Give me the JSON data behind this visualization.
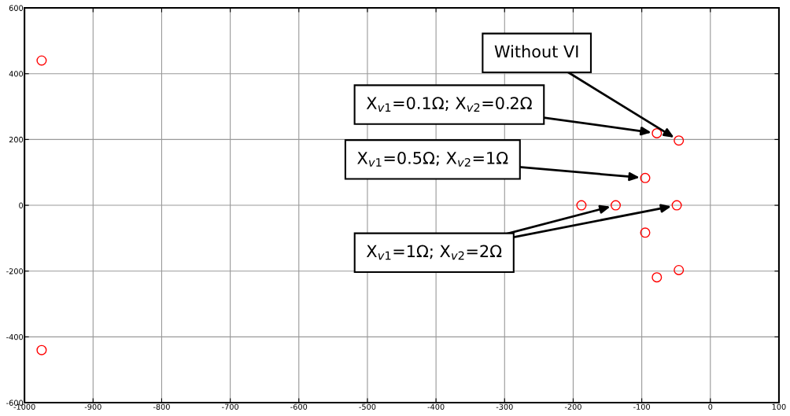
{
  "chart_data": {
    "type": "scatter",
    "marker": "circle",
    "grid": true,
    "xlim": [
      -1000,
      100
    ],
    "xticks": [
      -1000,
      -900,
      -800,
      -700,
      -600,
      -500,
      -400,
      -300,
      -200,
      -100,
      0,
      100
    ],
    "ylim": [
      -600,
      600
    ],
    "yticks": [
      -600,
      -400,
      -200,
      0,
      200,
      400,
      600
    ],
    "series": [
      {
        "color": "#ff0000",
        "x": [
          -975,
          -975,
          -188,
          -138,
          -49,
          -95,
          -95,
          -78,
          -78,
          -46,
          -46
        ],
        "values": [
          440,
          -440,
          0,
          0,
          0,
          83,
          -83,
          219,
          -219,
          197,
          -197
        ]
      }
    ],
    "annotations": [
      "Without VI",
      "X$_{v1}$=0.1Ω; X$_{v2}$=0.2Ω",
      "X$_{v1}$=0.5Ω; X$_{v2}$=1Ω",
      "X$_{v1}$=1Ω; X$_{v2}$=2Ω"
    ]
  }
}
